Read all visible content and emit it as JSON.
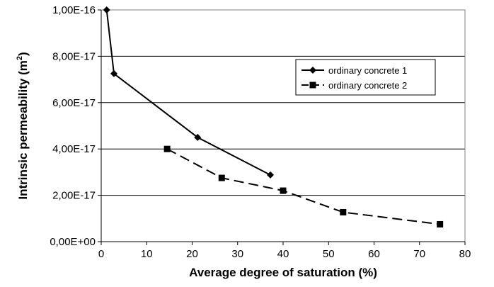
{
  "chart_data": {
    "type": "line",
    "xlabel": "Average degree of saturation (%)",
    "ylabel_prefix": "Intrinsic permeability (m",
    "ylabel_sup": "2",
    "ylabel_suffix": ")",
    "xlim": [
      0,
      80
    ],
    "ylim": [
      0,
      1e-16
    ],
    "x_ticks": [
      0,
      10,
      20,
      30,
      40,
      50,
      60,
      70,
      80
    ],
    "x_tick_labels": [
      "0",
      "10",
      "20",
      "30",
      "40",
      "50",
      "60",
      "70",
      "80"
    ],
    "y_ticks": [
      0,
      2e-17,
      4e-17,
      6e-17,
      8e-17,
      1e-16
    ],
    "y_tick_labels": [
      "0,00E+00",
      "2,00E-17",
      "4,00E-17",
      "6,00E-17",
      "8,00E-17",
      "1,00E-16"
    ],
    "grid": "horizontal",
    "legend_position": "top-right",
    "series": [
      {
        "name": "ordinary concrete 1",
        "marker": "diamond",
        "line": "solid",
        "x": [
          1.2,
          2.8,
          21.2,
          37.2
        ],
        "y": [
          1e-16,
          7.25e-17,
          4.5e-17,
          2.88e-17
        ]
      },
      {
        "name": "ordinary concrete 2",
        "marker": "square",
        "line": "dashed",
        "x": [
          14.5,
          26.5,
          40.0,
          53.2,
          74.5
        ],
        "y": [
          4e-17,
          2.75e-17,
          2.2e-17,
          1.27e-17,
          7.5e-18
        ]
      }
    ]
  }
}
